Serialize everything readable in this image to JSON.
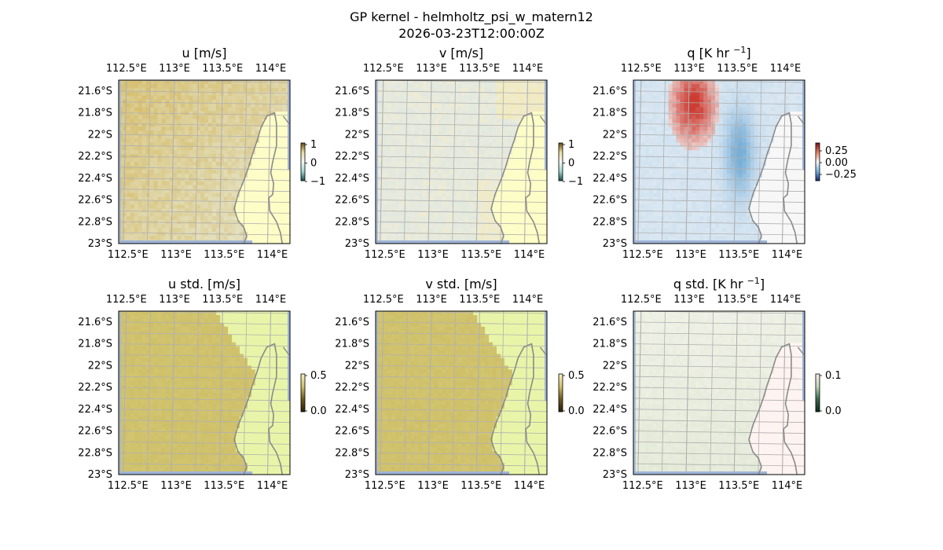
{
  "figure": {
    "title_line1": "GP kernel - helmholtz_psi_w_matern12",
    "title_line2": "2026-03-23T12:00:00Z"
  },
  "map": {
    "lon_ticks": [
      "112.5°E",
      "113°E",
      "113.5°E",
      "114°E"
    ],
    "lat_ticks": [
      "21.6°S",
      "21.8°S",
      "22°S",
      "22.2°S",
      "22.4°S",
      "22.6°S",
      "22.8°S",
      "23°S"
    ],
    "lon_values": [
      112.5,
      113.0,
      113.5,
      114.0
    ],
    "lat_values": [
      -21.6,
      -21.8,
      -22.0,
      -22.2,
      -22.4,
      -22.6,
      -22.8,
      -23.0
    ],
    "extent": {
      "lon_min": 112.42,
      "lon_max": 114.2,
      "lat_min": -23.0,
      "lat_max": -21.5
    }
  },
  "colors": {
    "land": "#fdfdc7",
    "ocean_edge": "#9fb4d8",
    "grid": "#b0b0b0",
    "coast": "#8a8a8a"
  },
  "panels": [
    {
      "id": "u",
      "title": "u [m/s]",
      "cbar_ticks": [
        "1",
        "0",
        "−1"
      ],
      "colormap": "diverging-brown-teal",
      "range": [
        -1,
        1
      ],
      "pattern": "u-mean",
      "land_fill": "#fdfdc7"
    },
    {
      "id": "v",
      "title": "v [m/s]",
      "cbar_ticks": [
        "1",
        "0",
        "−1"
      ],
      "colormap": "diverging-brown-teal",
      "range": [
        -1,
        1
      ],
      "pattern": "v-mean",
      "land_fill": "#fdfdc7"
    },
    {
      "id": "q",
      "title": "q [K hr −1]",
      "title_base": "q [K hr ",
      "title_sup": "−1",
      "title_end": "]",
      "cbar_ticks": [
        "0.25",
        "0.00",
        "−0.25"
      ],
      "colormap": "diverging-red-blue",
      "range": [
        -0.25,
        0.25
      ],
      "pattern": "q-mean",
      "land_fill": "#f7f7f7"
    },
    {
      "id": "ustd",
      "title": "u std. [m/s]",
      "cbar_ticks": [
        "0.5",
        "0.0"
      ],
      "colormap": "sequential-olive",
      "range": [
        0,
        0.5
      ],
      "pattern": "std-high",
      "land_fill": "#e8f5a8"
    },
    {
      "id": "vstd",
      "title": "v std. [m/s]",
      "cbar_ticks": [
        "0.5",
        "0.0"
      ],
      "colormap": "sequential-olive",
      "range": [
        0,
        0.5
      ],
      "pattern": "std-high",
      "land_fill": "#e8f5a8"
    },
    {
      "id": "qstd",
      "title": "q std. [K hr −1]",
      "title_base": "q std. [K hr ",
      "title_sup": "−1",
      "title_end": "]",
      "cbar_ticks": [
        "0.1",
        "0.0"
      ],
      "colormap": "sequential-green-pink",
      "range": [
        0,
        0.1
      ],
      "pattern": "std-low",
      "land_fill": "#fdf3f0"
    }
  ]
}
